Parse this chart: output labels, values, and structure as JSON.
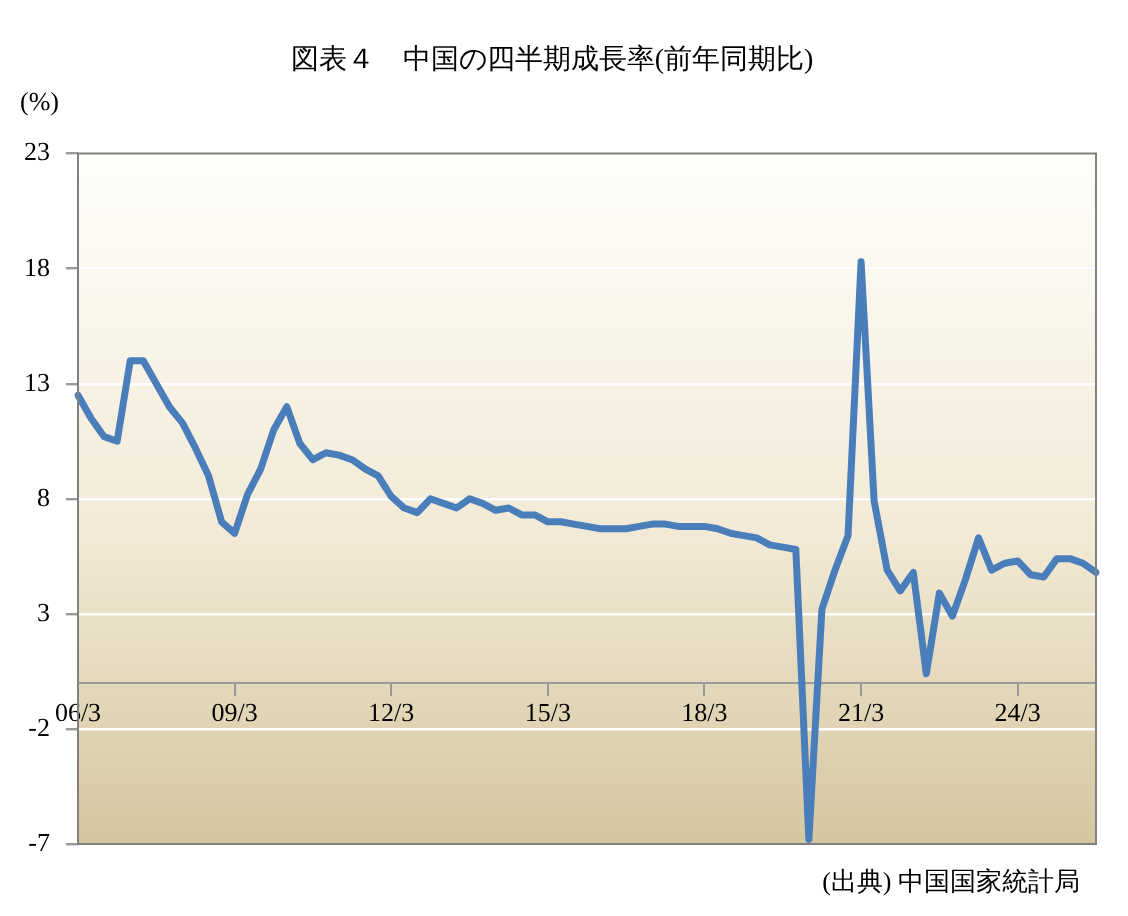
{
  "chart_data": {
    "type": "line",
    "title": "図表４　中国の四半期成長率(前年同期比)",
    "ylabel": "(%)",
    "categories": [
      "06/3",
      null,
      null,
      null,
      null,
      null,
      null,
      null,
      null,
      null,
      null,
      null,
      "09/3",
      null,
      null,
      null,
      null,
      null,
      null,
      null,
      null,
      null,
      null,
      null,
      "12/3",
      null,
      null,
      null,
      null,
      null,
      null,
      null,
      null,
      null,
      null,
      null,
      "15/3",
      null,
      null,
      null,
      null,
      null,
      null,
      null,
      null,
      null,
      null,
      null,
      "18/3",
      null,
      null,
      null,
      null,
      null,
      null,
      null,
      null,
      null,
      null,
      null,
      "21/3",
      null,
      null,
      null,
      null,
      null,
      null,
      null,
      null,
      null,
      null,
      null,
      "24/3",
      null,
      null,
      null,
      null,
      null,
      null
    ],
    "series": [
      {
        "color": "#4a7ebb",
        "values": [
          12.5,
          11.5,
          10.7,
          10.5,
          14.0,
          14.0,
          13.0,
          12.0,
          11.3,
          10.2,
          9.0,
          7.0,
          6.5,
          8.2,
          9.3,
          11.0,
          12.0,
          10.4,
          9.7,
          10.0,
          9.9,
          9.7,
          9.3,
          9.0,
          8.1,
          7.6,
          7.4,
          8.0,
          7.8,
          7.6,
          8.0,
          7.8,
          7.5,
          7.6,
          7.3,
          7.3,
          7.0,
          7.0,
          6.9,
          6.8,
          6.7,
          6.7,
          6.7,
          6.8,
          6.9,
          6.9,
          6.8,
          6.8,
          6.8,
          6.7,
          6.5,
          6.4,
          6.3,
          6.0,
          5.9,
          5.8,
          -6.8,
          3.2,
          4.9,
          6.4,
          18.3,
          7.9,
          4.9,
          4.0,
          4.8,
          0.4,
          3.9,
          2.9,
          4.5,
          6.3,
          4.9,
          5.2,
          5.3,
          4.7,
          4.6,
          5.4,
          5.4,
          5.2,
          4.8
        ]
      }
    ],
    "ylim": [
      -7,
      23
    ],
    "yticks": [
      -7,
      -2,
      3,
      8,
      13,
      18,
      23
    ],
    "grid": "y",
    "marker": "none",
    "line_style": "solid",
    "annotations": [
      "(出典) 中国国家統計局"
    ]
  }
}
